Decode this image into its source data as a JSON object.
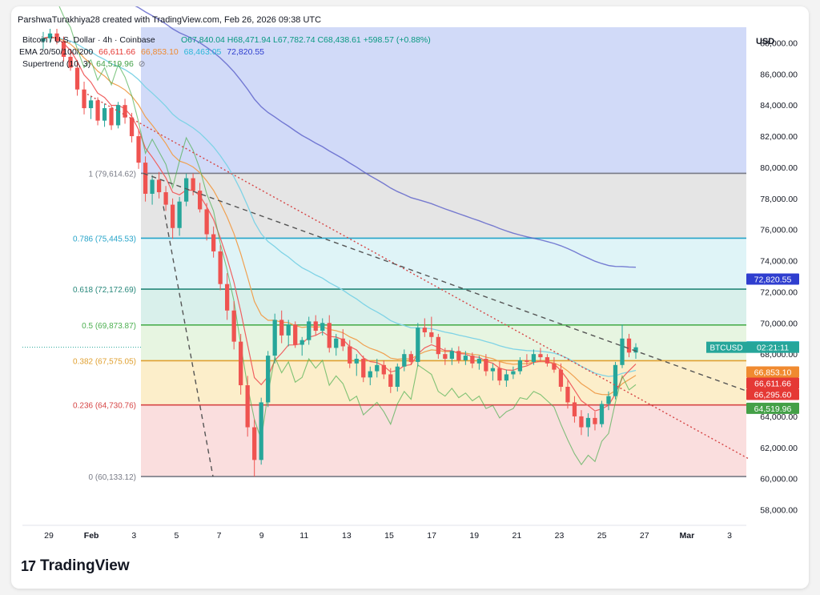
{
  "header": {
    "attribution": "ParshwaTurakhiya28 created with TradingView.com, Feb 26, 2026 09:38 UTC",
    "symbol": "Bitcoin / U.S. Dollar · 4h · Coinbase",
    "ohlc": "O67,840.04 H68,471.94 L67,782.74 C68,438.61 +598.57 (+0.88%)",
    "ema_label": "EMA 20/50/100/200",
    "ema_values": [
      "66,611.66",
      "66,853.10",
      "68,463.05",
      "72,820.55"
    ],
    "supertrend_label": "Supertrend (10, 3)",
    "supertrend_value": "64,519.96"
  },
  "currency": "USD",
  "brand": "TradingView",
  "colors": {
    "up": "#26a69a",
    "down": "#ef5350",
    "ema20": "#f06060",
    "ema50": "#f0a050",
    "ema100": "#7fd3e6",
    "ema200": "#5a5fc9",
    "supertrend": "#4caf50"
  },
  "chart_data": {
    "type": "candlestick",
    "title": "Bitcoin / U.S. Dollar · 4h · Coinbase",
    "ylim": [
      57000,
      89000
    ],
    "y_ticks": [
      "58,000.00",
      "60,000.00",
      "62,000.00",
      "64,000.00",
      "66,000.00",
      "68,000.00",
      "70,000.00",
      "72,000.00",
      "74,000.00",
      "76,000.00",
      "78,000.00",
      "80,000.00",
      "82,000.00",
      "84,000.00",
      "86,000.00",
      "88,000.00"
    ],
    "x_ticks": [
      "29",
      "Feb",
      "3",
      "5",
      "7",
      "9",
      "11",
      "13",
      "15",
      "17",
      "19",
      "21",
      "23",
      "25",
      "27",
      "Mar",
      "3"
    ],
    "fib_levels": [
      {
        "label": "1 (79,614.62)",
        "value": 79614.62,
        "color": "#787b86"
      },
      {
        "label": "0.786 (75,445.53)",
        "value": 75445.53,
        "color": "#26a4c9"
      },
      {
        "label": "0.618 (72,172.69)",
        "value": 72172.69,
        "color": "#26877a"
      },
      {
        "label": "0.5 (69,873.87)",
        "value": 69873.87,
        "color": "#4caf50"
      },
      {
        "label": "0.382 (67,575.05)",
        "value": 67575.05,
        "color": "#e0a030"
      },
      {
        "label": "0.236 (64,730.76)",
        "value": 64730.76,
        "color": "#d64545"
      },
      {
        "label": "0 (60,133.12)",
        "value": 60133.12,
        "color": "#787b86"
      }
    ],
    "price_labels": [
      {
        "text": "72,820.55",
        "value": 72820.55,
        "color": "#2f3ecf"
      },
      {
        "text": "68,463.05",
        "value": 68463.05,
        "color": "#2ab7d8"
      },
      {
        "text": "66,853.10",
        "value": 66853.1,
        "color": "#f08a30"
      },
      {
        "text": "66,611.66",
        "value": 66611.66,
        "color": "#e53935"
      },
      {
        "text": "66,295.60",
        "value": 66295.6,
        "color": "#e53935"
      },
      {
        "text": "64,519.96",
        "value": 64519.96,
        "color": "#43a047"
      }
    ],
    "current_price_tag": {
      "symbol": "BTCUSD",
      "countdown": "02:21:11",
      "value": 68438.61
    },
    "candles": [
      [
        88100,
        88700,
        87600,
        88300
      ],
      [
        88300,
        88900,
        88000,
        88600
      ],
      [
        88600,
        88900,
        87900,
        88100
      ],
      [
        88100,
        88400,
        86800,
        87100
      ],
      [
        87100,
        87600,
        86200,
        86400
      ],
      [
        86400,
        86900,
        84600,
        85000
      ],
      [
        85000,
        85500,
        83400,
        83800
      ],
      [
        83800,
        84600,
        83100,
        84300
      ],
      [
        84300,
        84500,
        82700,
        83000
      ],
      [
        83000,
        84100,
        82600,
        83800
      ],
      [
        83800,
        84000,
        82400,
        82700
      ],
      [
        82700,
        84200,
        82500,
        84000
      ],
      [
        84000,
        84400,
        82800,
        83200
      ],
      [
        83200,
        83500,
        81600,
        82000
      ],
      [
        82000,
        82400,
        79900,
        80300
      ],
      [
        80300,
        80700,
        77800,
        78300
      ],
      [
        78300,
        79500,
        77600,
        79200
      ],
      [
        79200,
        79700,
        78000,
        78400
      ],
      [
        78400,
        78800,
        77200,
        77600
      ],
      [
        77600,
        78000,
        75400,
        76100
      ],
      [
        76100,
        78100,
        75600,
        77800
      ],
      [
        77800,
        79600,
        77500,
        79300
      ],
      [
        79300,
        79614,
        78200,
        78500
      ],
      [
        78500,
        79000,
        77100,
        77300
      ],
      [
        77300,
        77700,
        75300,
        75700
      ],
      [
        75700,
        76200,
        74200,
        74600
      ],
      [
        74600,
        75000,
        72100,
        72500
      ],
      [
        72500,
        73200,
        70200,
        70800
      ],
      [
        70800,
        71400,
        68300,
        68800
      ],
      [
        68800,
        69300,
        65400,
        66000
      ],
      [
        66000,
        66600,
        62700,
        63300
      ],
      [
        63300,
        63800,
        60133,
        61200
      ],
      [
        61200,
        65200,
        60900,
        64900
      ],
      [
        64900,
        68200,
        64600,
        67900
      ],
      [
        67900,
        70600,
        67400,
        70200
      ],
      [
        70200,
        70800,
        68700,
        69200
      ],
      [
        69200,
        70200,
        68500,
        69900
      ],
      [
        69900,
        70100,
        68400,
        68600
      ],
      [
        68600,
        69100,
        67900,
        68900
      ],
      [
        68900,
        70400,
        68600,
        70100
      ],
      [
        70100,
        70500,
        69200,
        69500
      ],
      [
        69500,
        70300,
        69200,
        70000
      ],
      [
        70000,
        70500,
        68100,
        68400
      ],
      [
        68400,
        69300,
        67900,
        69000
      ],
      [
        69000,
        69600,
        68200,
        68500
      ],
      [
        68500,
        68900,
        67100,
        67400
      ],
      [
        67400,
        68000,
        66600,
        67700
      ],
      [
        67700,
        67900,
        66200,
        66500
      ],
      [
        66500,
        67200,
        66000,
        66900
      ],
      [
        66900,
        67700,
        66500,
        67300
      ],
      [
        67300,
        67600,
        66400,
        66700
      ],
      [
        66700,
        67100,
        65500,
        65900
      ],
      [
        65900,
        67400,
        65600,
        67200
      ],
      [
        67200,
        68300,
        66900,
        68000
      ],
      [
        68000,
        68200,
        67300,
        67500
      ],
      [
        67500,
        70000,
        67200,
        69700
      ],
      [
        69700,
        70300,
        69100,
        69400
      ],
      [
        69400,
        70400,
        68700,
        69100
      ],
      [
        69100,
        69300,
        67700,
        68000
      ],
      [
        68000,
        68400,
        67300,
        67700
      ],
      [
        67700,
        68400,
        67300,
        68200
      ],
      [
        68200,
        68500,
        67400,
        67600
      ],
      [
        67600,
        68200,
        67300,
        67900
      ],
      [
        67900,
        68100,
        67100,
        67400
      ],
      [
        67400,
        67900,
        67000,
        67700
      ],
      [
        67700,
        68000,
        66600,
        66900
      ],
      [
        66900,
        67400,
        66300,
        67100
      ],
      [
        67100,
        67500,
        66000,
        66300
      ],
      [
        66300,
        67000,
        65900,
        66700
      ],
      [
        66700,
        67200,
        66400,
        66900
      ],
      [
        66900,
        67800,
        66700,
        67600
      ],
      [
        67600,
        68000,
        67300,
        67500
      ],
      [
        67500,
        68300,
        67300,
        68000
      ],
      [
        68000,
        68400,
        67500,
        67800
      ],
      [
        67800,
        68000,
        67200,
        67400
      ],
      [
        67400,
        67800,
        66800,
        67000
      ],
      [
        67000,
        67400,
        65600,
        65900
      ],
      [
        65900,
        66300,
        64500,
        64900
      ],
      [
        64900,
        65300,
        63600,
        64000
      ],
      [
        64000,
        64400,
        62800,
        63300
      ],
      [
        63300,
        64200,
        62700,
        63900
      ],
      [
        63900,
        64300,
        63100,
        63500
      ],
      [
        63500,
        65000,
        63300,
        64800
      ],
      [
        64800,
        65600,
        64400,
        65300
      ],
      [
        65300,
        67500,
        65100,
        67300
      ],
      [
        67300,
        69900,
        67100,
        69000
      ],
      [
        69000,
        69300,
        67800,
        68100
      ],
      [
        68100,
        68700,
        67700,
        68438
      ]
    ]
  }
}
